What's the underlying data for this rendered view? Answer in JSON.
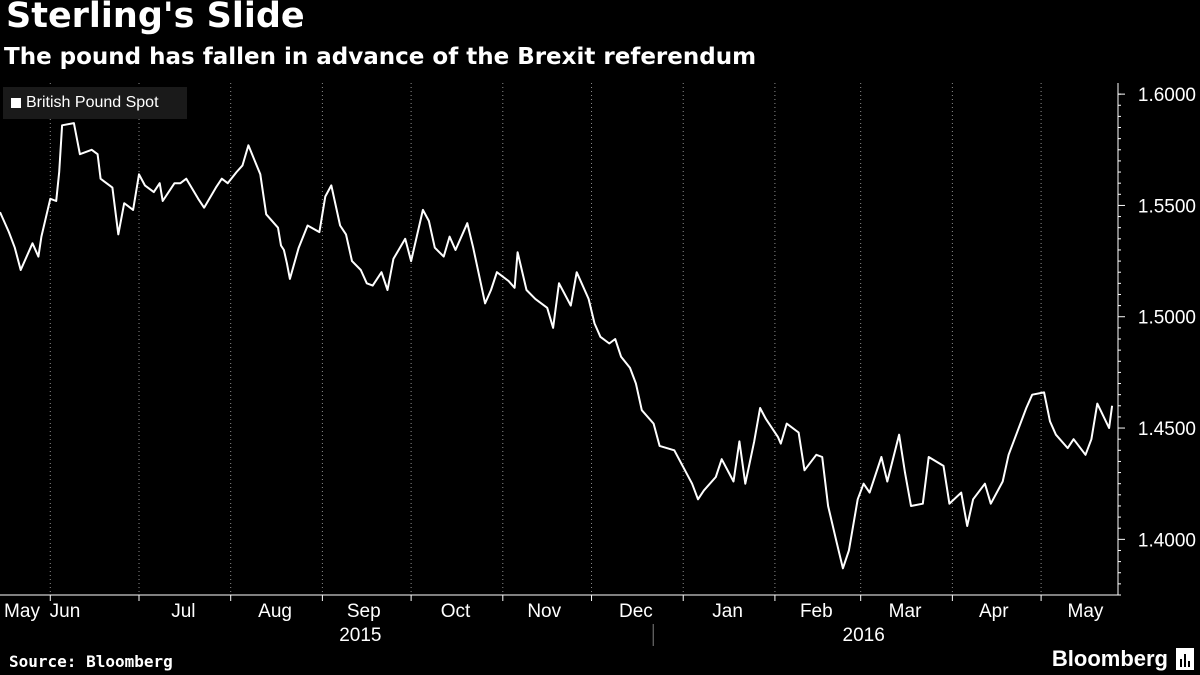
{
  "header": {
    "title": "Sterling's Slide",
    "subtitle": "The pound has fallen in advance of the Brexit referendum"
  },
  "footer": {
    "source": "Source: Bloomberg",
    "brand": "Bloomberg"
  },
  "colors": {
    "background": "#000000",
    "line": "#ffffff",
    "grid": "#ffffff",
    "legend_bg": "#1a1a1a"
  },
  "chart_data": {
    "type": "line",
    "title": "Sterling's Slide",
    "subtitle": "The pound has fallen in advance of the Brexit referendum",
    "xlabel": "",
    "ylabel": "",
    "ylim": [
      1.375,
      1.605
    ],
    "y_ticks": [
      1.4,
      1.45,
      1.5,
      1.55,
      1.6
    ],
    "y_tick_labels": [
      "1.4000",
      "1.4500",
      "1.5000",
      "1.5500",
      "1.6000"
    ],
    "x_tick_labels": [
      "May",
      "Jun",
      "Jul",
      "Aug",
      "Sep",
      "Oct",
      "Nov",
      "Dec",
      "Jan",
      "Feb",
      "Mar",
      "Apr",
      "May"
    ],
    "year_labels": [
      "2015",
      "2016"
    ],
    "grid": "vertical dotted lines at month boundaries",
    "legend_position": "top-left",
    "series": [
      {
        "name": "British Pound Spot",
        "x": [
          "2015-05-15",
          "2015-05-18",
          "2015-05-20",
          "2015-05-22",
          "2015-05-26",
          "2015-05-28",
          "2015-05-29",
          "2015-06-01",
          "2015-06-03",
          "2015-06-04",
          "2015-06-05",
          "2015-06-09",
          "2015-06-11",
          "2015-06-15",
          "2015-06-17",
          "2015-06-18",
          "2015-06-19",
          "2015-06-22",
          "2015-06-24",
          "2015-06-26",
          "2015-06-29",
          "2015-07-01",
          "2015-07-03",
          "2015-07-06",
          "2015-07-08",
          "2015-07-09",
          "2015-07-13",
          "2015-07-15",
          "2015-07-17",
          "2015-07-21",
          "2015-07-23",
          "2015-07-27",
          "2015-07-29",
          "2015-07-31",
          "2015-08-03",
          "2015-08-05",
          "2015-08-07",
          "2015-08-11",
          "2015-08-13",
          "2015-08-17",
          "2015-08-18",
          "2015-08-19",
          "2015-08-20",
          "2015-08-21",
          "2015-08-24",
          "2015-08-27",
          "2015-08-31",
          "2015-09-02",
          "2015-09-04",
          "2015-09-07",
          "2015-09-09",
          "2015-09-11",
          "2015-09-14",
          "2015-09-16",
          "2015-09-18",
          "2015-09-21",
          "2015-09-23",
          "2015-09-25",
          "2015-09-29",
          "2015-10-01",
          "2015-10-05",
          "2015-10-07",
          "2015-10-09",
          "2015-10-12",
          "2015-10-14",
          "2015-10-16",
          "2015-10-20",
          "2015-10-22",
          "2015-10-26",
          "2015-10-28",
          "2015-10-30",
          "2015-11-03",
          "2015-11-05",
          "2015-11-06",
          "2015-11-09",
          "2015-11-12",
          "2015-11-16",
          "2015-11-18",
          "2015-11-20",
          "2015-11-24",
          "2015-11-26",
          "2015-11-30",
          "2015-12-02",
          "2015-12-04",
          "2015-12-07",
          "2015-12-09",
          "2015-12-11",
          "2015-12-14",
          "2015-12-16",
          "2015-12-18",
          "2015-12-22",
          "2015-12-24",
          "2015-12-29",
          "2016-01-04",
          "2016-01-06",
          "2016-01-08",
          "2016-01-12",
          "2016-01-14",
          "2016-01-18",
          "2016-01-20",
          "2016-01-22",
          "2016-01-25",
          "2016-01-27",
          "2016-01-29",
          "2016-02-02",
          "2016-02-03",
          "2016-02-05",
          "2016-02-09",
          "2016-02-11",
          "2016-02-15",
          "2016-02-17",
          "2016-02-19",
          "2016-02-22",
          "2016-02-24",
          "2016-02-26",
          "2016-02-29",
          "2016-03-02",
          "2016-03-04",
          "2016-03-08",
          "2016-03-10",
          "2016-03-14",
          "2016-03-16",
          "2016-03-18",
          "2016-03-22",
          "2016-03-24",
          "2016-03-29",
          "2016-03-31",
          "2016-04-04",
          "2016-04-06",
          "2016-04-08",
          "2016-04-12",
          "2016-04-14",
          "2016-04-18",
          "2016-04-20",
          "2016-04-22",
          "2016-04-26",
          "2016-04-28",
          "2016-05-02",
          "2016-05-04",
          "2016-05-06",
          "2016-05-10",
          "2016-05-12",
          "2016-05-16",
          "2016-05-18",
          "2016-05-20",
          "2016-05-24",
          "2016-05-25"
        ],
        "values": [
          1.547,
          1.538,
          1.531,
          1.521,
          1.533,
          1.527,
          1.536,
          1.553,
          1.552,
          1.565,
          1.586,
          1.587,
          1.573,
          1.575,
          1.573,
          1.562,
          1.561,
          1.558,
          1.537,
          1.551,
          1.548,
          1.564,
          1.559,
          1.556,
          1.56,
          1.552,
          1.56,
          1.56,
          1.562,
          1.553,
          1.549,
          1.558,
          1.562,
          1.56,
          1.565,
          1.568,
          1.577,
          1.564,
          1.546,
          1.54,
          1.532,
          1.53,
          1.524,
          1.517,
          1.531,
          1.541,
          1.538,
          1.554,
          1.559,
          1.541,
          1.537,
          1.525,
          1.521,
          1.515,
          1.514,
          1.52,
          1.512,
          1.526,
          1.535,
          1.525,
          1.548,
          1.543,
          1.531,
          1.527,
          1.536,
          1.53,
          1.542,
          1.531,
          1.506,
          1.512,
          1.52,
          1.516,
          1.513,
          1.529,
          1.512,
          1.508,
          1.504,
          1.495,
          1.515,
          1.505,
          1.52,
          1.508,
          1.497,
          1.491,
          1.488,
          1.49,
          1.482,
          1.477,
          1.47,
          1.458,
          1.452,
          1.442,
          1.44,
          1.425,
          1.418,
          1.422,
          1.428,
          1.436,
          1.426,
          1.444,
          1.425,
          1.444,
          1.459,
          1.454,
          1.446,
          1.443,
          1.452,
          1.448,
          1.431,
          1.438,
          1.437,
          1.415,
          1.398,
          1.387,
          1.395,
          1.418,
          1.425,
          1.421,
          1.437,
          1.426,
          1.447,
          1.43,
          1.415,
          1.416,
          1.437,
          1.433,
          1.416,
          1.421,
          1.406,
          1.418,
          1.425,
          1.416,
          1.426,
          1.438,
          1.445,
          1.459,
          1.465,
          1.466,
          1.453,
          1.447,
          1.441,
          1.445,
          1.438,
          1.445,
          1.461,
          1.45,
          1.46
        ]
      }
    ]
  }
}
